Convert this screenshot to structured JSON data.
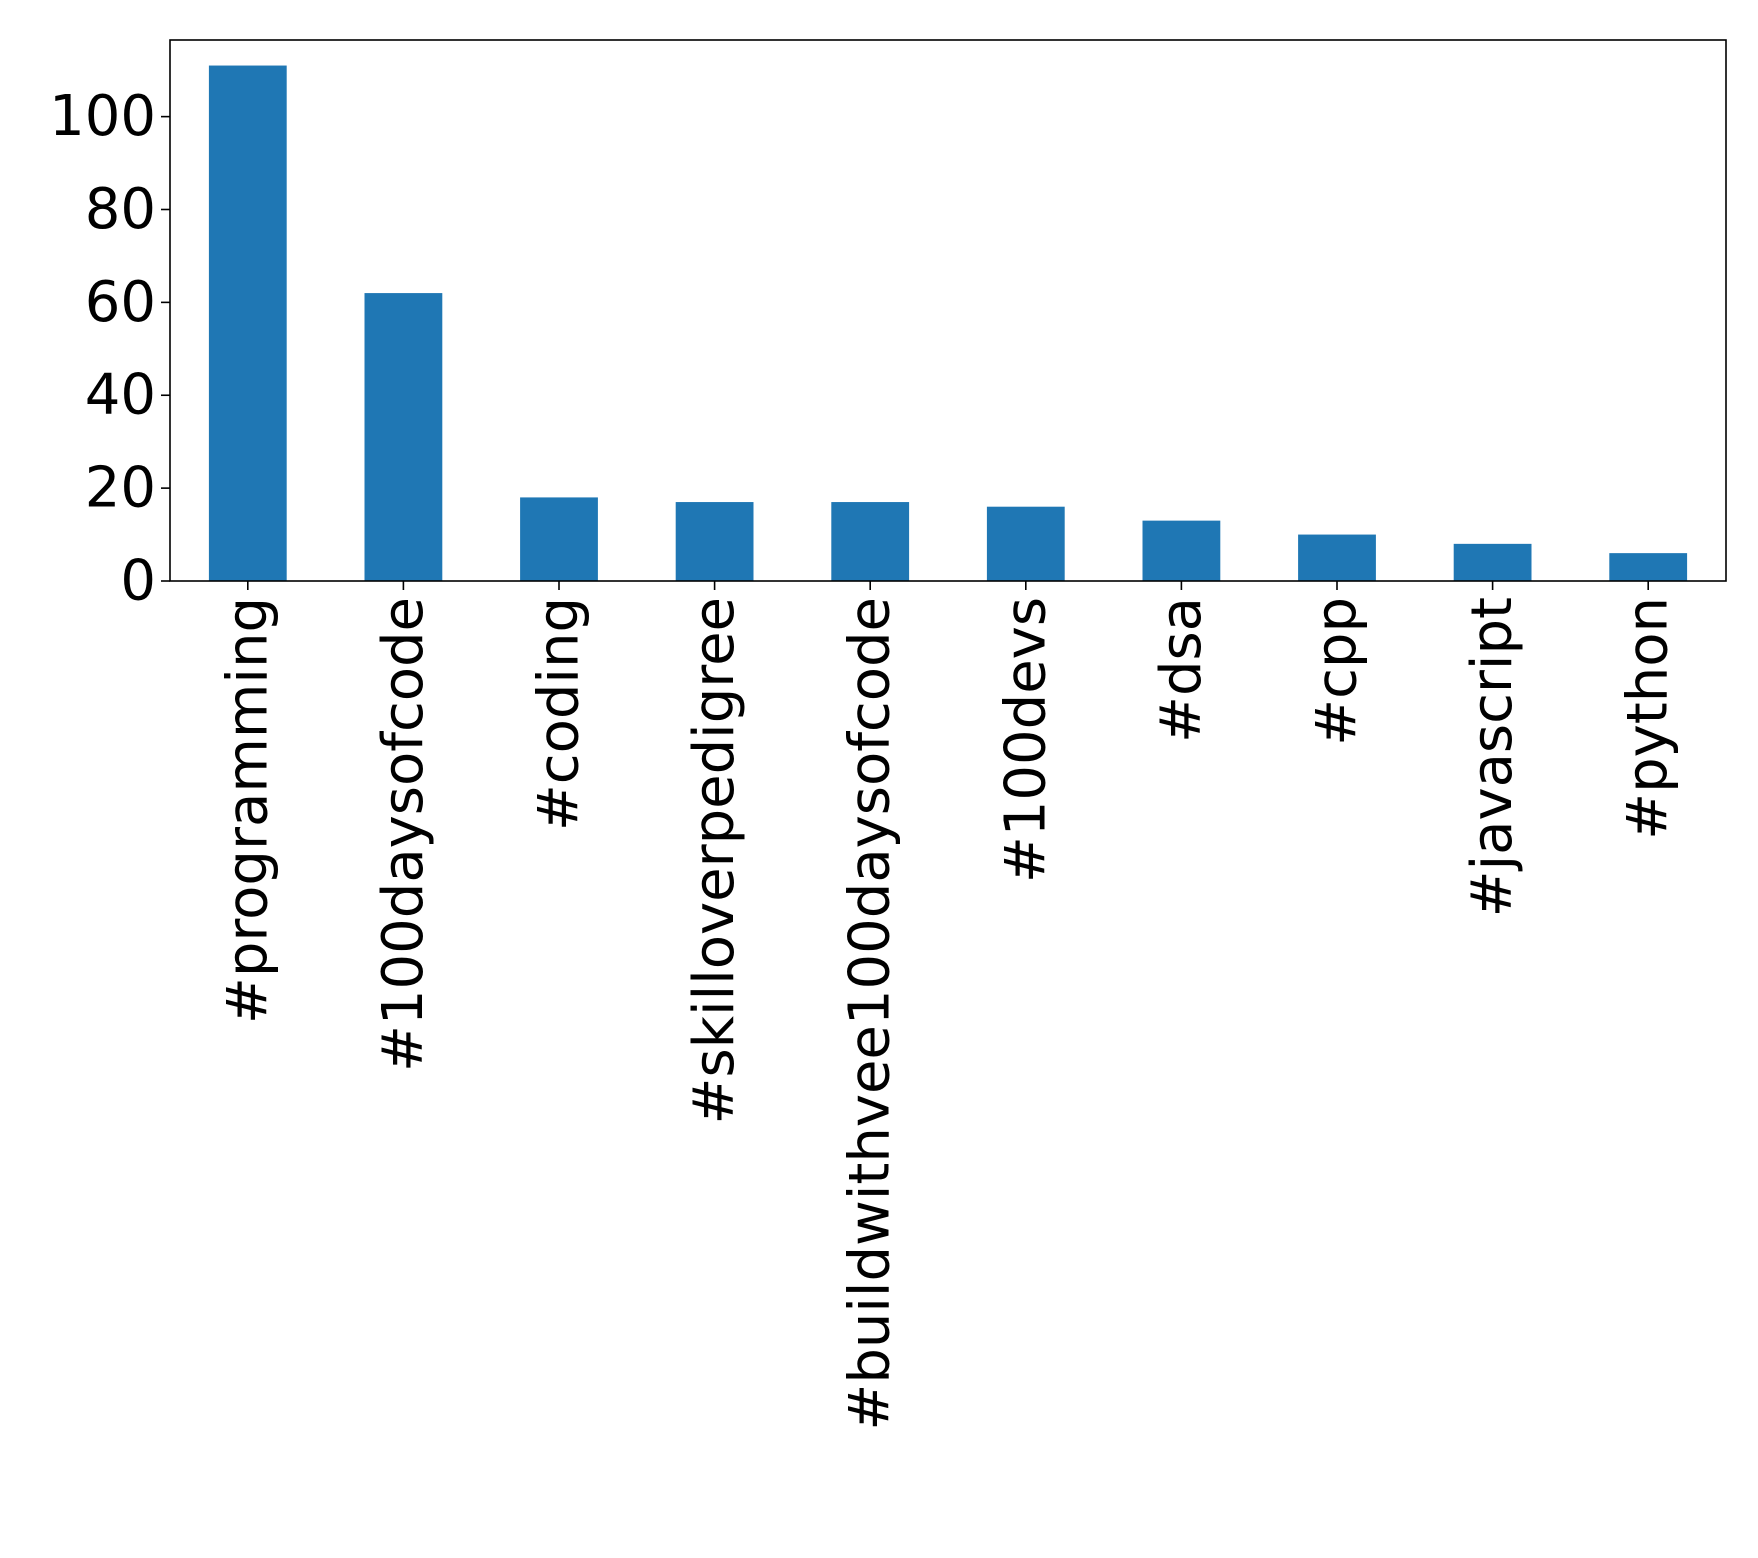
{
  "chart_data": {
    "type": "bar",
    "title": "",
    "xlabel": "",
    "ylabel": "",
    "categories": [
      "#programming",
      "#100daysofcode",
      "#coding",
      "#skilloverpedigree",
      "#buildwithvee100daysofcode",
      "#100devs",
      "#dsa",
      "#cpp",
      "#javascript",
      "#python"
    ],
    "values": [
      111,
      62,
      18,
      17,
      17,
      16,
      13,
      10,
      8,
      6
    ],
    "ylim": [
      0,
      116.5
    ],
    "yticks": [
      0,
      20,
      40,
      60,
      80,
      100
    ],
    "grid": false,
    "legend": "none",
    "bar_color": "#1f77b4"
  }
}
